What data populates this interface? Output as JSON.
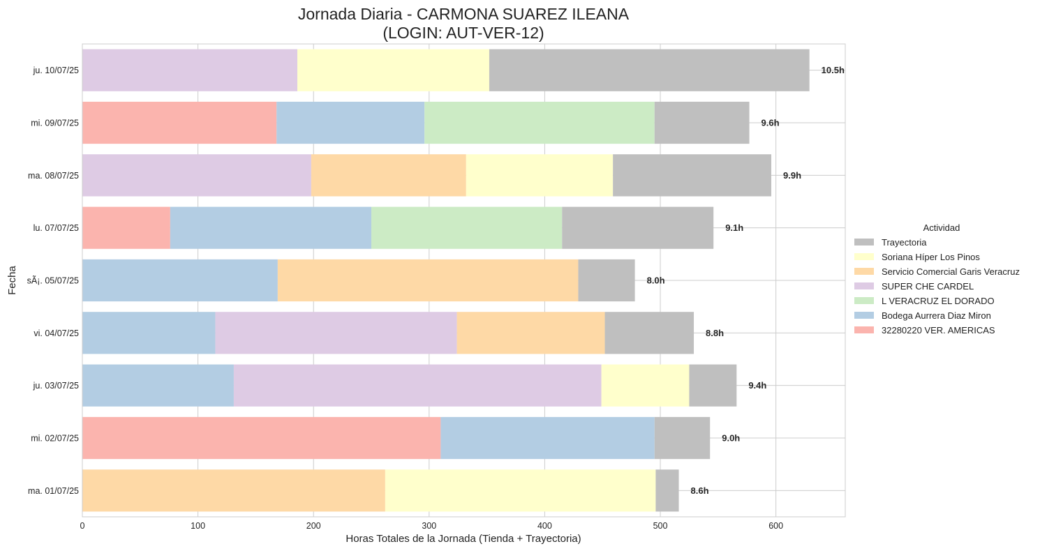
{
  "chart_data": {
    "type": "bar",
    "orientation": "horizontal",
    "stacked": true,
    "title": "Jornada Diaria - CARMONA SUAREZ ILEANA",
    "subtitle": "(LOGIN: AUT-VER-12)",
    "xlabel": "Horas Totales de la Jornada (Tienda + Trayectoria)",
    "ylabel": "Fecha",
    "xlim": [
      0,
      660
    ],
    "xticks": [
      0,
      100,
      200,
      300,
      400,
      500,
      600
    ],
    "grid": true,
    "legend": {
      "title": "Actividad",
      "placement": "right"
    },
    "categories": [
      "ju. 10/07/25",
      "mi. 09/07/25",
      "ma. 08/07/25",
      "lu. 07/07/25",
      "sÃ¡. 05/07/25",
      "vi. 04/07/25",
      "ju. 03/07/25",
      "mi. 02/07/25",
      "ma. 01/07/25"
    ],
    "totals": [
      "10.5h",
      "9.6h",
      "9.9h",
      "9.1h",
      "8.0h",
      "8.8h",
      "9.4h",
      "9.0h",
      "8.6h"
    ],
    "stack_order": [
      "32280220 VER. AMERICAS",
      "Bodega Aurrera Diaz Miron",
      "L VERACRUZ EL DORADO",
      "SUPER CHE CARDEL",
      "Servicio Comercial Garis Veracruz",
      "Soriana Híper Los Pinos",
      "Trayectoria"
    ],
    "series": [
      {
        "name": "Trayectoria",
        "color": "#bfbfbf",
        "values": [
          277,
          82,
          137,
          131,
          49,
          77,
          41,
          48,
          20
        ]
      },
      {
        "name": "Soriana Híper Los Pinos",
        "color": "#ffffcc",
        "values": [
          166,
          0,
          127,
          0,
          0,
          0,
          76,
          0,
          234
        ]
      },
      {
        "name": "Servicio Comercial Garis Veracruz",
        "color": "#fed9a6",
        "values": [
          0,
          0,
          134,
          0,
          260,
          128,
          0,
          0,
          262
        ]
      },
      {
        "name": "SUPER CHE CARDEL",
        "color": "#decbe4",
        "values": [
          186,
          0,
          198,
          0,
          0,
          209,
          318,
          0,
          0
        ]
      },
      {
        "name": "L VERACRUZ EL DORADO",
        "color": "#ccebc5",
        "values": [
          0,
          199,
          0,
          165,
          0,
          0,
          0,
          0,
          0
        ]
      },
      {
        "name": "Bodega Aurrera Diaz Miron",
        "color": "#b3cde3",
        "values": [
          0,
          128,
          0,
          174,
          169,
          115,
          131,
          185,
          0
        ]
      },
      {
        "name": "32280220 VER. AMERICAS",
        "color": "#fbb4ae",
        "values": [
          0,
          168,
          0,
          76,
          0,
          0,
          0,
          310,
          0
        ]
      }
    ]
  }
}
